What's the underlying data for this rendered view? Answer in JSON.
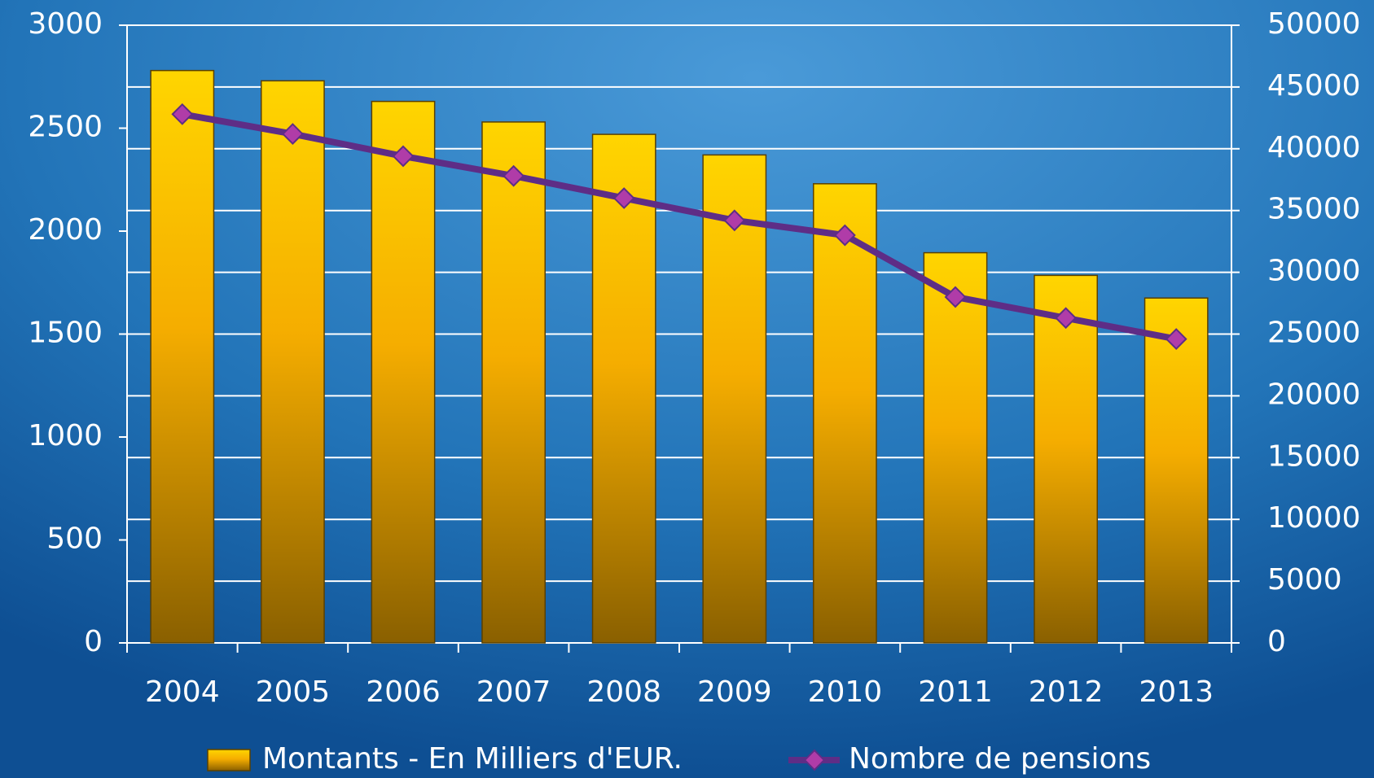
{
  "chart_data": {
    "type": "bar",
    "categories": [
      "2004",
      "2005",
      "2006",
      "2007",
      "2008",
      "2009",
      "2010",
      "2011",
      "2012",
      "2013"
    ],
    "series": [
      {
        "name": "Montants - En Milliers d'EUR.",
        "color": "#ffc000",
        "values": [
          2780,
          2730,
          2630,
          2530,
          2470,
          2370,
          2230,
          1895,
          1785,
          1675
        ]
      },
      {
        "name": "Nombre de pensions",
        "color": "#5e2d86",
        "marker_color": "#b03ca8",
        "type": "line",
        "axis": "y2",
        "values": [
          42800,
          41200,
          39400,
          37800,
          36000,
          34200,
          33000,
          28000,
          26300,
          24600
        ]
      }
    ],
    "ylim": [
      0,
      3000
    ],
    "yticks": [
      0,
      500,
      1000,
      1500,
      2000,
      2500,
      3000
    ],
    "y2lim": [
      0,
      50000
    ],
    "y2ticks": [
      0,
      5000,
      10000,
      15000,
      20000,
      25000,
      30000,
      35000,
      40000,
      45000,
      50000
    ],
    "grid": true,
    "legend": "bottom"
  }
}
